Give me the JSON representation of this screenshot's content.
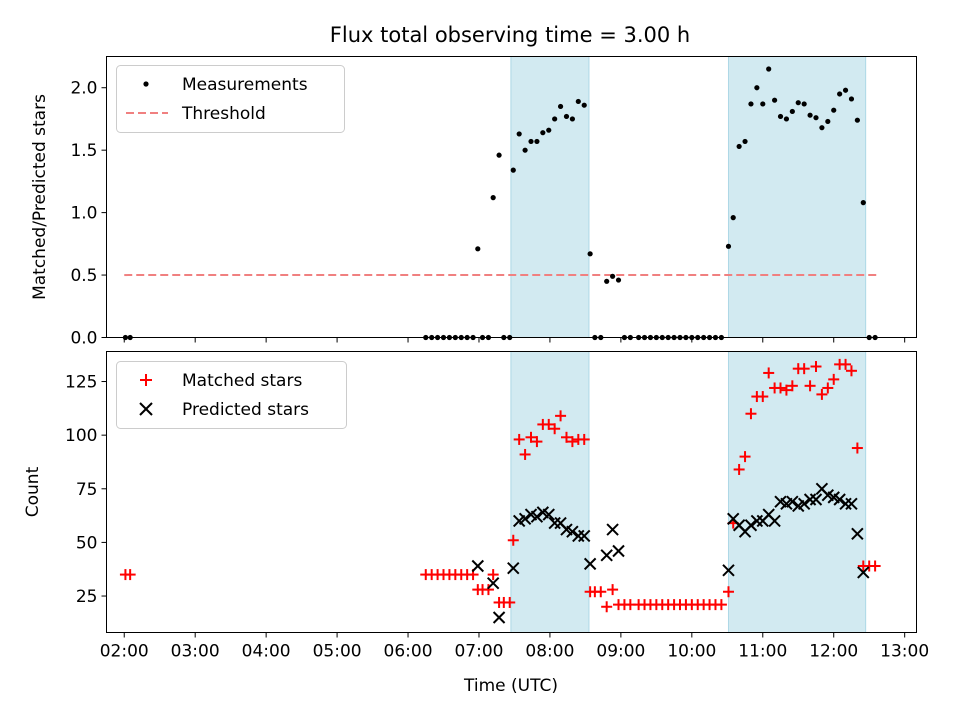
{
  "title": "Flux total observing time = 3.00 h",
  "colors": {
    "shade": "#add8e6",
    "threshold": "#f08080",
    "matched": "#ff0000",
    "predicted": "#000000",
    "measurement": "#000000"
  },
  "chart_data": [
    {
      "type": "scatter",
      "panel": "top",
      "ylabel": "Matched/Predicted stars",
      "xlabel": "",
      "xlim": [
        "01:45",
        "13:10"
      ],
      "ylim": [
        0,
        2.25
      ],
      "yticks": [
        0.0,
        0.5,
        1.0,
        1.5,
        2.0
      ],
      "ytick_labels": [
        "0.0",
        "0.5",
        "1.0",
        "1.5",
        "2.0"
      ],
      "legend": {
        "placement": "top-left",
        "entries": [
          "Measurements",
          "Threshold"
        ]
      },
      "shaded_intervals": [
        [
          "07:27",
          "08:33"
        ],
        [
          "10:31",
          "12:27"
        ]
      ],
      "threshold": {
        "name": "Threshold",
        "y": 0.5,
        "x": [
          "02:00",
          "12:37"
        ],
        "style": "dashed"
      },
      "series": [
        {
          "name": "Measurements",
          "marker": "dot",
          "points": [
            [
              "02:01",
              0
            ],
            [
              "02:05",
              0
            ],
            [
              "06:15",
              0
            ],
            [
              "06:20",
              0
            ],
            [
              "06:25",
              0
            ],
            [
              "06:30",
              0
            ],
            [
              "06:35",
              0
            ],
            [
              "06:40",
              0
            ],
            [
              "06:45",
              0
            ],
            [
              "06:50",
              0
            ],
            [
              "06:55",
              0
            ],
            [
              "06:59",
              0.71
            ],
            [
              "07:03",
              0
            ],
            [
              "07:08",
              0
            ],
            [
              "07:12",
              1.12
            ],
            [
              "07:17",
              1.46
            ],
            [
              "07:21",
              0
            ],
            [
              "07:26",
              0
            ],
            [
              "07:29",
              1.34
            ],
            [
              "07:34",
              1.63
            ],
            [
              "07:39",
              1.5
            ],
            [
              "07:44",
              1.57
            ],
            [
              "07:49",
              1.57
            ],
            [
              "07:54",
              1.64
            ],
            [
              "07:59",
              1.66
            ],
            [
              "08:04",
              1.75
            ],
            [
              "08:09",
              1.85
            ],
            [
              "08:14",
              1.77
            ],
            [
              "08:19",
              1.75
            ],
            [
              "08:24",
              1.89
            ],
            [
              "08:29",
              1.86
            ],
            [
              "08:34",
              0.67
            ],
            [
              "08:38",
              0
            ],
            [
              "08:43",
              0
            ],
            [
              "08:48",
              0.45
            ],
            [
              "08:53",
              0.49
            ],
            [
              "08:58",
              0.46
            ],
            [
              "09:03",
              0
            ],
            [
              "09:08",
              0
            ],
            [
              "09:15",
              0
            ],
            [
              "09:20",
              0
            ],
            [
              "09:25",
              0
            ],
            [
              "09:30",
              0
            ],
            [
              "09:35",
              0
            ],
            [
              "09:40",
              0
            ],
            [
              "09:45",
              0
            ],
            [
              "09:50",
              0
            ],
            [
              "09:55",
              0
            ],
            [
              "10:00",
              0
            ],
            [
              "10:05",
              0
            ],
            [
              "10:10",
              0
            ],
            [
              "10:15",
              0
            ],
            [
              "10:20",
              0
            ],
            [
              "10:25",
              0
            ],
            [
              "10:31",
              0.73
            ],
            [
              "10:35",
              0.96
            ],
            [
              "10:40",
              1.53
            ],
            [
              "10:45",
              1.57
            ],
            [
              "10:50",
              1.87
            ],
            [
              "10:55",
              2.0
            ],
            [
              "11:00",
              1.87
            ],
            [
              "11:05",
              2.15
            ],
            [
              "11:10",
              1.9
            ],
            [
              "11:15",
              1.77
            ],
            [
              "11:20",
              1.75
            ],
            [
              "11:25",
              1.81
            ],
            [
              "11:30",
              1.88
            ],
            [
              "11:35",
              1.87
            ],
            [
              "11:40",
              1.78
            ],
            [
              "11:45",
              1.76
            ],
            [
              "11:50",
              1.68
            ],
            [
              "11:55",
              1.73
            ],
            [
              "12:00",
              1.82
            ],
            [
              "12:05",
              1.95
            ],
            [
              "12:10",
              1.98
            ],
            [
              "12:15",
              1.91
            ],
            [
              "12:20",
              1.74
            ],
            [
              "12:25",
              1.08
            ],
            [
              "12:30",
              0
            ],
            [
              "12:35",
              0
            ]
          ]
        }
      ]
    },
    {
      "type": "scatter",
      "panel": "bottom",
      "ylabel": "Count",
      "xlabel": "Time (UTC)",
      "xlim": [
        "01:45",
        "13:10"
      ],
      "ylim": [
        8,
        139
      ],
      "yticks": [
        25,
        50,
        75,
        100,
        125
      ],
      "ytick_labels": [
        "25",
        "50",
        "75",
        "100",
        "125"
      ],
      "xticks": [
        "02:00",
        "03:00",
        "04:00",
        "05:00",
        "06:00",
        "07:00",
        "08:00",
        "09:00",
        "10:00",
        "11:00",
        "12:00",
        "13:00"
      ],
      "xtick_labels": [
        "02:00",
        "03:00",
        "04:00",
        "05:00",
        "06:00",
        "07:00",
        "08:00",
        "09:00",
        "10:00",
        "11:00",
        "12:00",
        "13:00"
      ],
      "legend": {
        "placement": "top-left",
        "entries": [
          "Matched stars",
          "Predicted stars"
        ]
      },
      "shaded_intervals": [
        [
          "07:27",
          "08:33"
        ],
        [
          "10:31",
          "12:27"
        ]
      ],
      "series": [
        {
          "name": "Matched stars",
          "marker": "plus",
          "points": [
            [
              "02:01",
              35
            ],
            [
              "02:05",
              35
            ],
            [
              "06:15",
              35
            ],
            [
              "06:20",
              35
            ],
            [
              "06:25",
              35
            ],
            [
              "06:30",
              35
            ],
            [
              "06:35",
              35
            ],
            [
              "06:40",
              35
            ],
            [
              "06:45",
              35
            ],
            [
              "06:50",
              35
            ],
            [
              "06:55",
              35
            ],
            [
              "06:59",
              28
            ],
            [
              "07:03",
              28
            ],
            [
              "07:08",
              28
            ],
            [
              "07:12",
              35
            ],
            [
              "07:17",
              22
            ],
            [
              "07:21",
              22
            ],
            [
              "07:26",
              22
            ],
            [
              "07:29",
              51
            ],
            [
              "07:34",
              98
            ],
            [
              "07:39",
              91
            ],
            [
              "07:44",
              99
            ],
            [
              "07:49",
              97
            ],
            [
              "07:54",
              105
            ],
            [
              "07:59",
              105
            ],
            [
              "08:04",
              103
            ],
            [
              "08:09",
              109
            ],
            [
              "08:14",
              99
            ],
            [
              "08:19",
              97
            ],
            [
              "08:24",
              98
            ],
            [
              "08:29",
              98
            ],
            [
              "08:34",
              27
            ],
            [
              "08:38",
              27
            ],
            [
              "08:43",
              27
            ],
            [
              "08:48",
              20
            ],
            [
              "08:53",
              28
            ],
            [
              "08:58",
              21
            ],
            [
              "09:03",
              21
            ],
            [
              "09:08",
              21
            ],
            [
              "09:15",
              21
            ],
            [
              "09:20",
              21
            ],
            [
              "09:25",
              21
            ],
            [
              "09:30",
              21
            ],
            [
              "09:35",
              21
            ],
            [
              "09:40",
              21
            ],
            [
              "09:45",
              21
            ],
            [
              "09:50",
              21
            ],
            [
              "09:55",
              21
            ],
            [
              "10:00",
              21
            ],
            [
              "10:05",
              21
            ],
            [
              "10:10",
              21
            ],
            [
              "10:15",
              21
            ],
            [
              "10:20",
              21
            ],
            [
              "10:25",
              21
            ],
            [
              "10:31",
              27
            ],
            [
              "10:35",
              59
            ],
            [
              "10:40",
              84
            ],
            [
              "10:45",
              90
            ],
            [
              "10:50",
              110
            ],
            [
              "10:55",
              118
            ],
            [
              "11:00",
              118
            ],
            [
              "11:05",
              129
            ],
            [
              "11:10",
              122
            ],
            [
              "11:15",
              122
            ],
            [
              "11:20",
              121
            ],
            [
              "11:25",
              123
            ],
            [
              "11:30",
              131
            ],
            [
              "11:35",
              131
            ],
            [
              "11:40",
              123
            ],
            [
              "11:45",
              132
            ],
            [
              "11:50",
              119
            ],
            [
              "11:55",
              122
            ],
            [
              "12:00",
              126
            ],
            [
              "12:05",
              133
            ],
            [
              "12:10",
              133
            ],
            [
              "12:15",
              130
            ],
            [
              "12:20",
              94
            ],
            [
              "12:25",
              39
            ],
            [
              "12:30",
              39
            ],
            [
              "12:35",
              39
            ]
          ]
        },
        {
          "name": "Predicted stars",
          "marker": "x",
          "points": [
            [
              "06:59",
              39
            ],
            [
              "07:12",
              31
            ],
            [
              "07:17",
              15
            ],
            [
              "07:29",
              38
            ],
            [
              "07:34",
              60
            ],
            [
              "07:39",
              61
            ],
            [
              "07:44",
              63
            ],
            [
              "07:49",
              62
            ],
            [
              "07:54",
              64
            ],
            [
              "07:59",
              63
            ],
            [
              "08:04",
              59
            ],
            [
              "08:09",
              59
            ],
            [
              "08:14",
              56
            ],
            [
              "08:19",
              55
            ],
            [
              "08:24",
              53
            ],
            [
              "08:29",
              53
            ],
            [
              "08:34",
              40
            ],
            [
              "08:48",
              44
            ],
            [
              "08:53",
              56
            ],
            [
              "08:58",
              46
            ],
            [
              "10:31",
              37
            ],
            [
              "10:35",
              61
            ],
            [
              "10:40",
              58
            ],
            [
              "10:45",
              55
            ],
            [
              "10:50",
              58
            ],
            [
              "10:55",
              60
            ],
            [
              "11:00",
              60
            ],
            [
              "11:05",
              63
            ],
            [
              "11:10",
              60
            ],
            [
              "11:15",
              69
            ],
            [
              "11:20",
              68
            ],
            [
              "11:25",
              69
            ],
            [
              "11:30",
              67
            ],
            [
              "11:35",
              68
            ],
            [
              "11:40",
              70
            ],
            [
              "11:45",
              70
            ],
            [
              "11:50",
              75
            ],
            [
              "11:55",
              72
            ],
            [
              "12:00",
              71
            ],
            [
              "12:05",
              70
            ],
            [
              "12:10",
              68
            ],
            [
              "12:15",
              68
            ],
            [
              "12:20",
              54
            ],
            [
              "12:25",
              36
            ]
          ]
        }
      ]
    }
  ]
}
